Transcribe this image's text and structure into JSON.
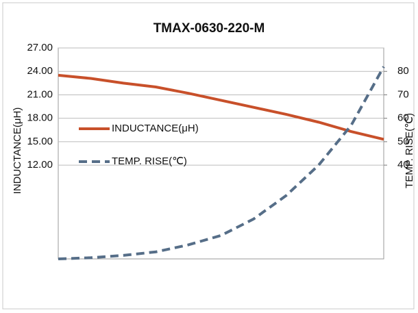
{
  "chart_data": {
    "type": "line",
    "title": "TMAX-0630-220-M",
    "x": [
      0,
      2,
      4,
      6,
      8,
      10,
      12,
      14,
      16,
      18,
      20
    ],
    "xlim": [
      0,
      20
    ],
    "ylabel": "INDUCTANCE(μH)",
    "y2label": "TEMP. RISE(℃)",
    "ylim": [
      0,
      27
    ],
    "yticks": [
      {
        "value": 27,
        "label": "27.00"
      },
      {
        "value": 24,
        "label": "24.00"
      },
      {
        "value": 21,
        "label": "21.00"
      },
      {
        "value": 18,
        "label": "18.00"
      },
      {
        "value": 15,
        "label": "15.00"
      },
      {
        "value": 12,
        "label": "12.00"
      }
    ],
    "y2lim": [
      0,
      90
    ],
    "y2ticks": [
      80,
      70,
      60,
      50,
      40
    ],
    "grid": true,
    "legend": "left",
    "series": [
      {
        "name": "INDUCTANCE(μH)",
        "color": "#c8502a",
        "dash": false,
        "values": [
          23.5,
          23.1,
          22.5,
          22.0,
          21.2,
          20.3,
          19.4,
          18.5,
          17.5,
          16.3,
          15.3
        ]
      },
      {
        "name": "TEMP. RISE(℃)",
        "color": "#566e88",
        "dash": true,
        "axis": "y2",
        "values": [
          0,
          0.5,
          1.5,
          3,
          6,
          10,
          17,
          27,
          40,
          57,
          82
        ]
      }
    ]
  }
}
